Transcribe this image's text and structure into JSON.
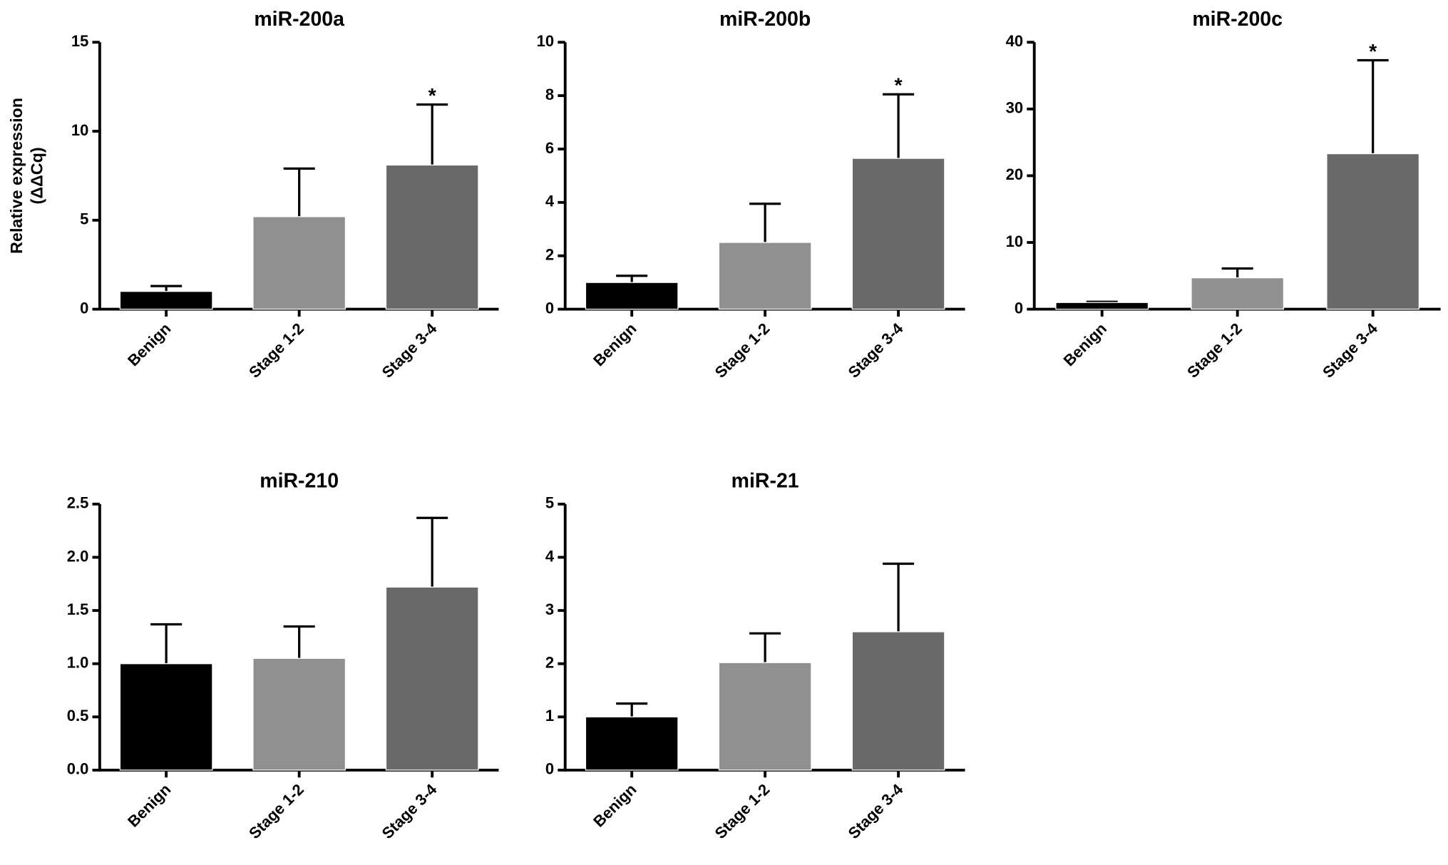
{
  "chart_data": [
    {
      "type": "bar",
      "title": "miR-200a",
      "y_label": [
        "Relative expression",
        "(ΔΔCq)"
      ],
      "categories": [
        "Benign",
        "Stage 1-2",
        "Stage 3-4"
      ],
      "colors": [
        "#000000",
        "#909090",
        "#696969"
      ],
      "values": [
        1.0,
        5.2,
        8.1
      ],
      "errors": [
        0.3,
        2.7,
        3.4
      ],
      "significance": [
        null,
        null,
        "*"
      ],
      "ylim": [
        0,
        15
      ],
      "yticks": [
        0,
        5,
        10,
        15
      ]
    },
    {
      "type": "bar",
      "title": "miR-200b",
      "categories": [
        "Benign",
        "Stage 1-2",
        "Stage 3-4"
      ],
      "colors": [
        "#000000",
        "#909090",
        "#696969"
      ],
      "values": [
        1.0,
        2.5,
        5.65
      ],
      "errors": [
        0.25,
        1.45,
        2.4
      ],
      "significance": [
        null,
        null,
        "*"
      ],
      "ylim": [
        0,
        10
      ],
      "yticks": [
        0,
        2,
        4,
        6,
        8,
        10
      ]
    },
    {
      "type": "bar",
      "title": "miR-200c",
      "categories": [
        "Benign",
        "Stage 1-2",
        "Stage 3-4"
      ],
      "colors": [
        "#000000",
        "#909090",
        "#696969"
      ],
      "values": [
        1.0,
        4.7,
        23.3
      ],
      "errors": [
        0.1,
        1.4,
        14.0
      ],
      "significance": [
        null,
        null,
        "*"
      ],
      "ylim": [
        0,
        40
      ],
      "yticks": [
        0,
        10,
        20,
        30,
        40
      ]
    },
    {
      "type": "bar",
      "title": "miR-210",
      "categories": [
        "Benign",
        "Stage 1-2",
        "Stage 3-4"
      ],
      "colors": [
        "#000000",
        "#909090",
        "#696969"
      ],
      "values": [
        1.0,
        1.05,
        1.72
      ],
      "errors": [
        0.37,
        0.3,
        0.65
      ],
      "significance": [
        null,
        null,
        null
      ],
      "ylim": [
        0,
        2.5
      ],
      "yticks": [
        {
          "value": 0,
          "label": "0.0"
        },
        0.5,
        {
          "value": 1,
          "label": "1.0"
        },
        1.5,
        {
          "value": 2,
          "label": "2.0"
        },
        2.5
      ]
    },
    {
      "type": "bar",
      "title": "miR-21",
      "categories": [
        "Benign",
        "Stage 1-2",
        "Stage 3-4"
      ],
      "colors": [
        "#000000",
        "#909090",
        "#696969"
      ],
      "values": [
        1.0,
        2.02,
        2.6
      ],
      "errors": [
        0.25,
        0.55,
        1.28
      ],
      "significance": [
        null,
        null,
        null
      ],
      "ylim": [
        0,
        5
      ],
      "yticks": [
        0,
        1,
        2,
        3,
        4,
        5
      ]
    }
  ]
}
